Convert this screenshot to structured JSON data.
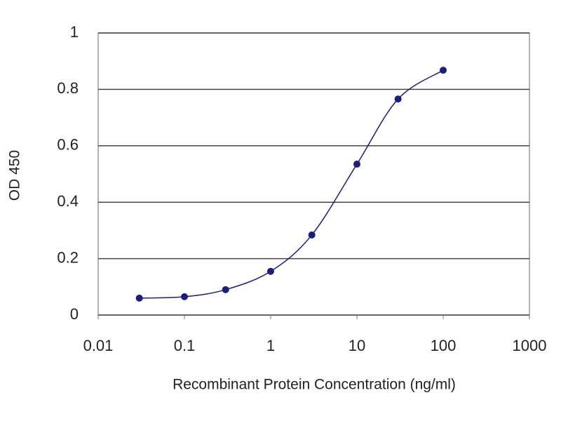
{
  "chart_data": {
    "type": "line",
    "title": null,
    "x_label": "Recombinant Protein Concentration (ng/ml)",
    "y_label": "OD 450",
    "x": [
      0.03,
      0.1,
      0.3,
      1,
      3,
      10,
      30,
      100
    ],
    "series": [
      {
        "name": null,
        "color": "#1c1f7a",
        "values": [
          0.06,
          0.065,
          0.09,
          0.155,
          0.284,
          0.535,
          0.766,
          0.868
        ]
      }
    ],
    "xscale": "log",
    "xlim": [
      0.01,
      1000
    ],
    "xticks": [
      0.01,
      0.1,
      1,
      10,
      100,
      1000
    ],
    "ylim": [
      0,
      1
    ],
    "yticks": [
      0,
      0.2,
      0.4,
      0.6,
      0.8,
      1
    ],
    "grid": true
  }
}
